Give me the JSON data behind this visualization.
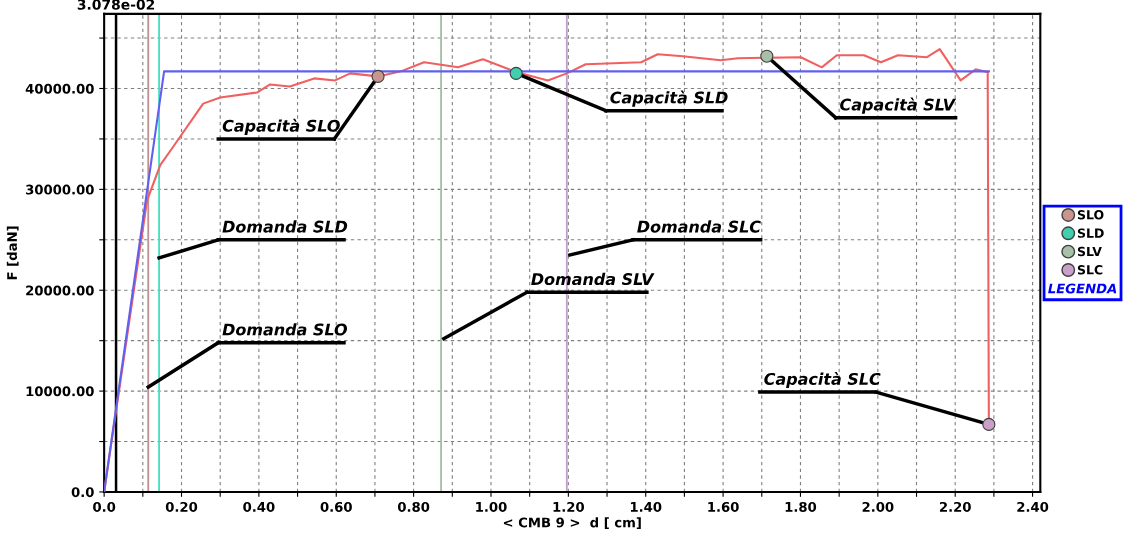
{
  "chart_data": {
    "type": "line",
    "xlabel": "< CMB 9 >  d [ cm]",
    "ylabel": "F [daN]",
    "legend_title": "LEGENDA",
    "legend": "right",
    "grid": true,
    "line_style": "solid",
    "xlim": [
      0,
      2.42
    ],
    "ylim": [
      0,
      47400
    ],
    "xticks": [
      {
        "value": 0,
        "label": "0.0"
      },
      {
        "value": 0.1,
        "label": null
      },
      {
        "value": 0.2,
        "label": "0.20"
      },
      {
        "value": 0.3,
        "label": null
      },
      {
        "value": 0.4,
        "label": "0.40"
      },
      {
        "value": 0.5,
        "label": null
      },
      {
        "value": 0.6,
        "label": "0.60"
      },
      {
        "value": 0.7,
        "label": null
      },
      {
        "value": 0.8,
        "label": "0.80"
      },
      {
        "value": 0.9,
        "label": null
      },
      {
        "value": 1.0,
        "label": "1.00"
      },
      {
        "value": 1.1,
        "label": null
      },
      {
        "value": 1.2,
        "label": "1.20"
      },
      {
        "value": 1.3,
        "label": null
      },
      {
        "value": 1.4,
        "label": "1.40"
      },
      {
        "value": 1.5,
        "label": null
      },
      {
        "value": 1.6,
        "label": "1.60"
      },
      {
        "value": 1.7,
        "label": null
      },
      {
        "value": 1.8,
        "label": "1.80"
      },
      {
        "value": 1.9,
        "label": null
      },
      {
        "value": 2.0,
        "label": "2.00"
      },
      {
        "value": 2.1,
        "label": null
      },
      {
        "value": 2.2,
        "label": "2.20"
      },
      {
        "value": 2.3,
        "label": null
      },
      {
        "value": 2.4,
        "label": "2.40"
      }
    ],
    "yticks": [
      {
        "value": 0,
        "label": "0.0"
      },
      {
        "value": 5000,
        "label": null
      },
      {
        "value": 10000,
        "label": "10000.00"
      },
      {
        "value": 15000,
        "label": null
      },
      {
        "value": 20000,
        "label": "20000.00"
      },
      {
        "value": 25000,
        "label": null
      },
      {
        "value": 30000,
        "label": "30000.00"
      },
      {
        "value": 35000,
        "label": null
      },
      {
        "value": 40000,
        "label": "40000.00"
      },
      {
        "value": 45000,
        "label": null
      }
    ],
    "series": [
      {
        "color": "#f06060",
        "marker": "none",
        "x": [
          0,
          0.111,
          0.145,
          0.178,
          0.256,
          0.3,
          0.395,
          0.429,
          0.48,
          0.543,
          0.597,
          0.636,
          0.708,
          0.767,
          0.827,
          0.915,
          0.979,
          1.067,
          1.147,
          1.196,
          1.245,
          1.388,
          1.431,
          1.496,
          1.594,
          1.638,
          1.801,
          1.855,
          1.894,
          1.964,
          2.008,
          2.052,
          2.127,
          2.16,
          2.214,
          2.253,
          2.284,
          2.287
        ],
        "values": [
          0,
          28900,
          32400,
          34200,
          38500,
          39100,
          39600,
          40400,
          40200,
          41000,
          40800,
          41500,
          41200,
          41700,
          42600,
          42100,
          42900,
          41600,
          40800,
          41500,
          42400,
          42600,
          43400,
          43200,
          42800,
          43000,
          43100,
          42100,
          43300,
          43300,
          42600,
          43300,
          43100,
          43900,
          40800,
          41900,
          41600,
          6700
        ]
      },
      {
        "color": "#6060f0",
        "marker": "none",
        "x": [
          0,
          0.155,
          2.287
        ],
        "values": [
          0,
          41700,
          41700
        ]
      },
      {
        "type": "scatter",
        "marker": "circle",
        "name": "SLO",
        "color": "#c8968c",
        "x": [
          0.708
        ],
        "values": [
          41200
        ]
      },
      {
        "type": "scatter",
        "marker": "circle",
        "name": "SLD",
        "color": "#40d0b0",
        "x": [
          1.065
        ],
        "values": [
          41500
        ]
      },
      {
        "type": "scatter",
        "marker": "circle",
        "name": "SLV",
        "color": "#a8c0a8",
        "x": [
          1.713
        ],
        "values": [
          43200
        ]
      },
      {
        "type": "scatter",
        "marker": "circle",
        "name": "SLC",
        "color": "#c8a0c8",
        "x": [
          2.287
        ],
        "values": [
          6700
        ]
      }
    ],
    "ref_lines": [
      {
        "axis": "x",
        "value": 0.03078,
        "label": "3.078e-02",
        "color": "#000000"
      },
      {
        "axis": "x",
        "value": 0.114,
        "color": "#c09090"
      },
      {
        "axis": "x",
        "value": 0.142,
        "color": "#40e0c0"
      },
      {
        "axis": "x",
        "value": 0.871,
        "color": "#a0c0a0"
      },
      {
        "axis": "x",
        "value": 1.196,
        "color": "#c0a0c8"
      }
    ],
    "annotations": [
      {
        "text": "Capacità SLO",
        "x": 0.708,
        "y": 41200
      },
      {
        "text": "Capacità SLD",
        "x": 1.065,
        "y": 41500
      },
      {
        "text": "Capacità SLV",
        "x": 1.713,
        "y": 43200
      },
      {
        "text": "Capacità SLC",
        "x": 2.287,
        "y": 6700
      },
      {
        "text": "Domanda SLD",
        "x": 0.142,
        "y": 23200
      },
      {
        "text": "Domanda SLO",
        "x": 0.114,
        "y": 10400
      },
      {
        "text": "Domanda SLV",
        "x": 0.878,
        "y": 15200
      },
      {
        "text": "Domanda SLC",
        "x": 1.204,
        "y": 23500
      }
    ]
  }
}
